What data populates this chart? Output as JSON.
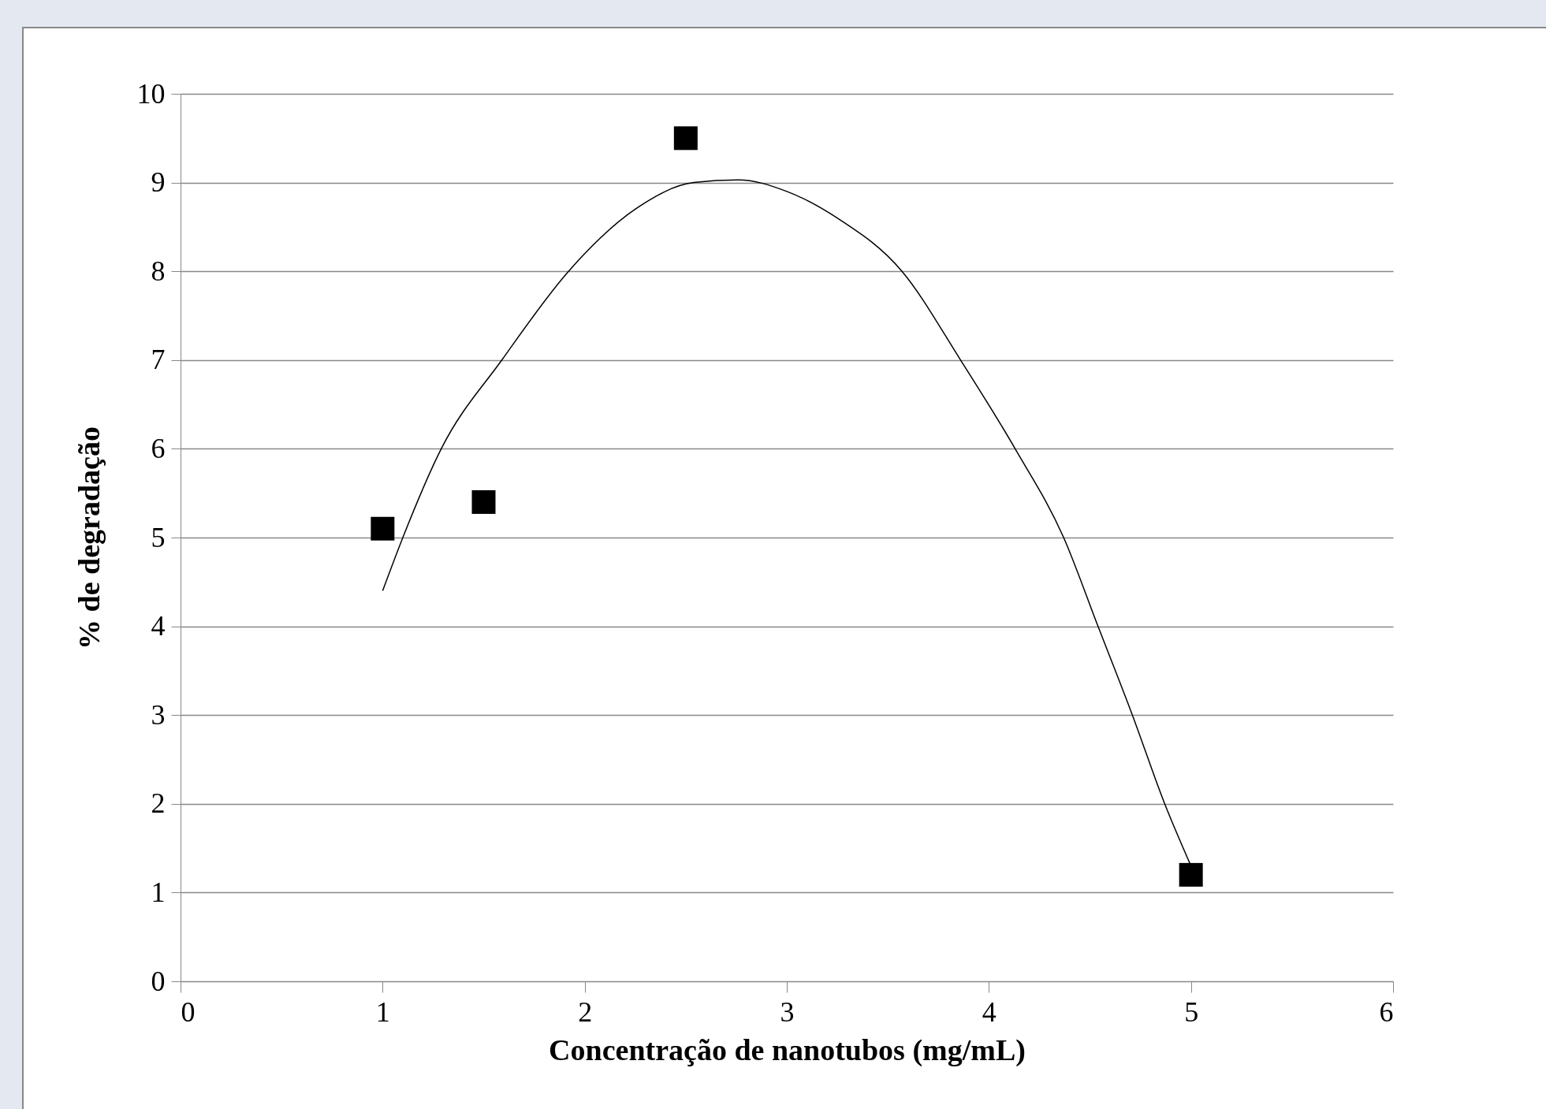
{
  "chart_data": {
    "type": "scatter",
    "xlabel": "Concentração  de nanotubos (mg/mL)",
    "ylabel": "% de degradação",
    "xlim": [
      0,
      6
    ],
    "ylim": [
      0,
      10
    ],
    "xticks": [
      0,
      1,
      2,
      3,
      4,
      5,
      6
    ],
    "yticks": [
      0,
      1,
      2,
      3,
      4,
      5,
      6,
      7,
      8,
      9,
      10
    ],
    "grid": "y",
    "series": [
      {
        "type": "scatter",
        "marker": "square",
        "color": "#000000",
        "x": [
          1,
          1.5,
          2.5,
          5
        ],
        "values": [
          5.1,
          5.4,
          9.5,
          1.2
        ]
      },
      {
        "type": "line",
        "marker": "none",
        "color": "#000000",
        "x": [
          1,
          1.1,
          1.29,
          1.59,
          1.92,
          2.25,
          2.54,
          2.76,
          3.0,
          3.25,
          3.57,
          3.86,
          4.13,
          4.37,
          4.54,
          4.71,
          4.87,
          5
        ],
        "values": [
          4.4,
          5,
          6,
          7,
          8,
          8.7,
          9,
          9.03,
          8.9,
          8.6,
          8,
          7,
          6,
          5,
          4,
          3,
          2,
          1.3
        ]
      }
    ]
  }
}
